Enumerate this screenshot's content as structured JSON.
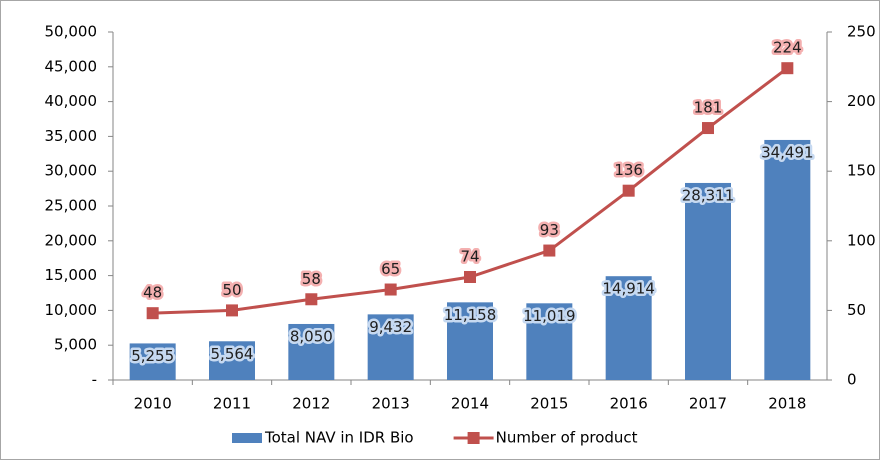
{
  "chart_data": {
    "type": "combo",
    "categories": [
      "2010",
      "2011",
      "2012",
      "2013",
      "2014",
      "2015",
      "2016",
      "2017",
      "2018"
    ],
    "series": [
      {
        "name": "Total NAV in IDR Bio",
        "type": "bar",
        "color": "#4f81bd",
        "axis": "y",
        "values": [
          5255,
          5564,
          8050,
          9432,
          11158,
          11019,
          14914,
          28311,
          34491
        ],
        "value_labels": [
          "5,255",
          "5,564",
          "8,050",
          "9,432",
          "11,158",
          "11,019",
          "14,914",
          "28,311",
          "34,491"
        ]
      },
      {
        "name": "Number of product",
        "type": "line",
        "color": "#c0504d",
        "axis": "y2",
        "values": [
          48,
          50,
          58,
          65,
          74,
          93,
          136,
          181,
          224
        ]
      }
    ],
    "ylim": [
      0,
      50000
    ],
    "yticks": [
      {
        "value": 0,
        "label": "-"
      },
      {
        "value": 5000,
        "label": "5,000"
      },
      {
        "value": 10000,
        "label": "10,000"
      },
      {
        "value": 15000,
        "label": "15,000"
      },
      {
        "value": 20000,
        "label": "20,000"
      },
      {
        "value": 25000,
        "label": "25,000"
      },
      {
        "value": 30000,
        "label": "30,000"
      },
      {
        "value": 35000,
        "label": "35,000"
      },
      {
        "value": 40000,
        "label": "40,000"
      },
      {
        "value": 45000,
        "label": "45,000"
      },
      {
        "value": 50000,
        "label": "50,000"
      }
    ],
    "y2lim": [
      0,
      250
    ],
    "y2ticks": [
      0,
      50,
      100,
      150,
      200,
      250
    ],
    "legend": "bottom"
  }
}
